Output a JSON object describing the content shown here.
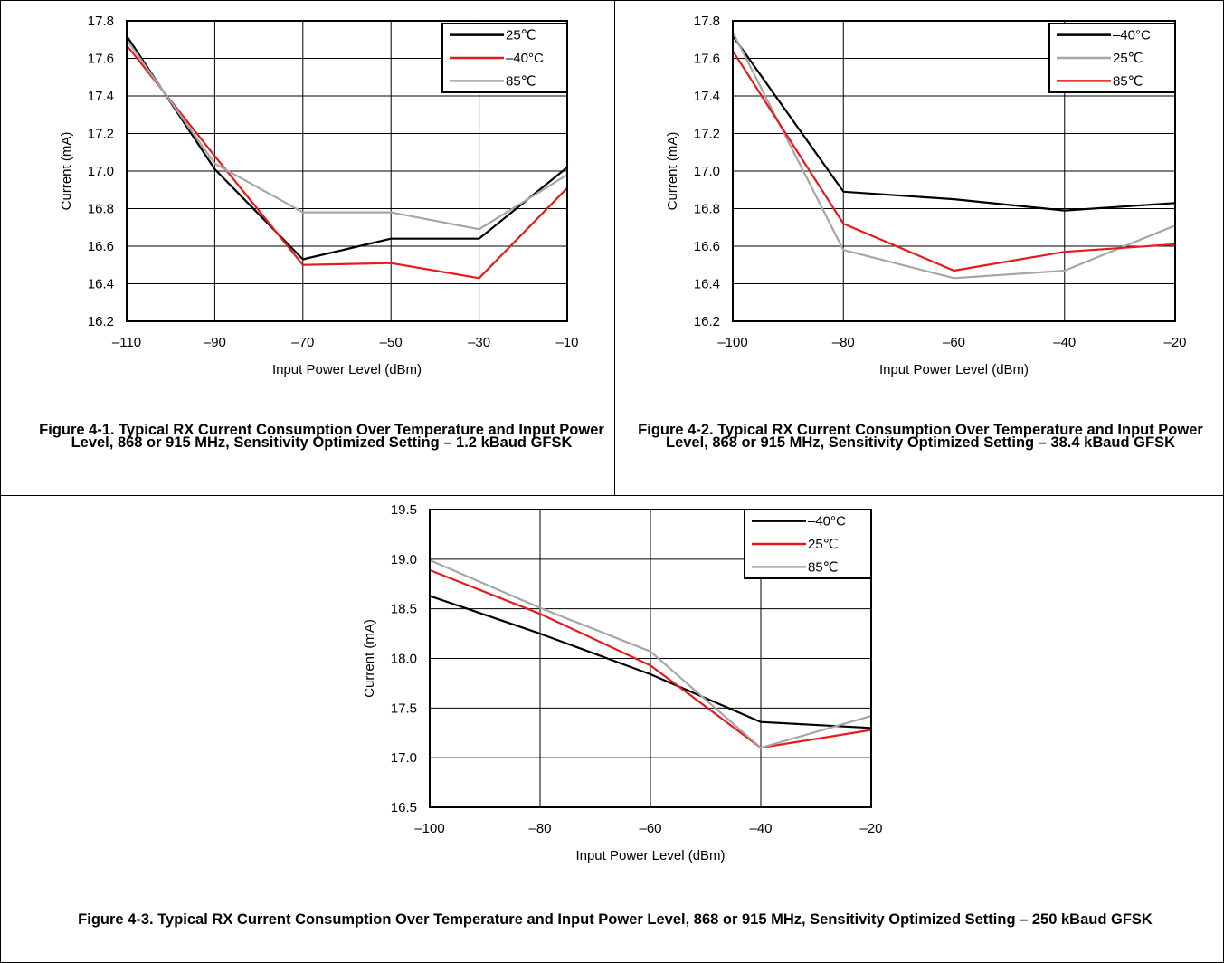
{
  "figures": [
    {
      "caption": "Figure 4-1. Typical RX Current Consumption Over Temperature and Input Power Level, 868 or 915 MHz, Sensitivity Optimized Setting – 1.2 kBaud GFSK"
    },
    {
      "caption": "Figure 4-2. Typical RX Current Consumption Over Temperature and Input Power Level, 868 or 915 MHz, Sensitivity Optimized Setting – 38.4 kBaud GFSK"
    },
    {
      "caption": "Figure 4-3. Typical RX Current Consumption Over Temperature and Input Power Level, 868 or 915 MHz, Sensitivity Optimized Setting – 250 kBaud GFSK"
    }
  ],
  "chart_data": [
    {
      "type": "line",
      "xlabel": "Input Power Level (dBm)",
      "ylabel": "Current (mA)",
      "xlim": [
        -110,
        -10
      ],
      "ylim": [
        16.2,
        17.8
      ],
      "xticks": [
        -110,
        -90,
        -70,
        -50,
        -30,
        -10
      ],
      "yticks": [
        16.2,
        16.4,
        16.6,
        16.8,
        17.0,
        17.2,
        17.4,
        17.6,
        17.8
      ],
      "xtick_labels": [
        "–110",
        "–90",
        "–70",
        "–50",
        "–30",
        "–10"
      ],
      "ytick_labels": [
        "16.2",
        "16.4",
        "16.6",
        "16.8",
        "17.0",
        "17.2",
        "17.4",
        "17.6",
        "17.8"
      ],
      "grid": true,
      "legend": "top-right",
      "x": [
        -110,
        -90,
        -70,
        -50,
        -30,
        -10
      ],
      "series": [
        {
          "name": "25℃",
          "color": "#000000",
          "values": [
            17.72,
            17.01,
            16.53,
            16.64,
            16.64,
            17.02
          ]
        },
        {
          "name": "–40°C",
          "color": "#e8191c",
          "values": [
            17.67,
            17.08,
            16.5,
            16.51,
            16.43,
            16.91
          ]
        },
        {
          "name": "85℃",
          "color": "#a6a6a6",
          "values": [
            17.7,
            17.04,
            16.78,
            16.78,
            16.69,
            16.98
          ]
        }
      ]
    },
    {
      "type": "line",
      "xlabel": "Input Power Level (dBm)",
      "ylabel": "Current (mA)",
      "xlim": [
        -100,
        -20
      ],
      "ylim": [
        16.2,
        17.8
      ],
      "xticks": [
        -100,
        -80,
        -60,
        -40,
        -20
      ],
      "yticks": [
        16.2,
        16.4,
        16.6,
        16.8,
        17.0,
        17.2,
        17.4,
        17.6,
        17.8
      ],
      "xtick_labels": [
        "–100",
        "–80",
        "–60",
        "–40",
        "–20"
      ],
      "ytick_labels": [
        "16.2",
        "16.4",
        "16.6",
        "16.8",
        "17.0",
        "17.2",
        "17.4",
        "17.6",
        "17.8"
      ],
      "grid": true,
      "legend": "top-right",
      "x": [
        -100,
        -80,
        -60,
        -40,
        -20
      ],
      "series": [
        {
          "name": "–40°C",
          "color": "#000000",
          "values": [
            17.72,
            16.89,
            16.85,
            16.79,
            16.83
          ]
        },
        {
          "name": "25℃",
          "color": "#a6a6a6",
          "values": [
            17.74,
            16.58,
            16.43,
            16.47,
            16.71
          ]
        },
        {
          "name": "85℃",
          "color": "#e8191c",
          "values": [
            17.64,
            16.72,
            16.47,
            16.57,
            16.61
          ]
        }
      ]
    },
    {
      "type": "line",
      "xlabel": "Input Power Level (dBm)",
      "ylabel": "Current (mA)",
      "xlim": [
        -100,
        -20
      ],
      "ylim": [
        16.5,
        19.5
      ],
      "xticks": [
        -100,
        -80,
        -60,
        -40,
        -20
      ],
      "yticks": [
        16.5,
        17.0,
        17.5,
        18.0,
        18.5,
        19.0,
        19.5
      ],
      "xtick_labels": [
        "–100",
        "–80",
        "–60",
        "–40",
        "–20"
      ],
      "ytick_labels": [
        "16.5",
        "17.0",
        "17.5",
        "18.0",
        "18.5",
        "19.0",
        "19.5"
      ],
      "grid": true,
      "legend": "top-right",
      "x": [
        -100,
        -80,
        -60,
        -40,
        -20
      ],
      "series": [
        {
          "name": "–40°C",
          "color": "#000000",
          "values": [
            18.63,
            18.25,
            17.84,
            17.36,
            17.3
          ]
        },
        {
          "name": "25℃",
          "color": "#e8191c",
          "values": [
            18.89,
            18.45,
            17.93,
            17.1,
            17.28
          ]
        },
        {
          "name": "85℃",
          "color": "#a6a6a6",
          "values": [
            18.99,
            18.51,
            18.07,
            17.1,
            17.42
          ]
        }
      ]
    }
  ]
}
